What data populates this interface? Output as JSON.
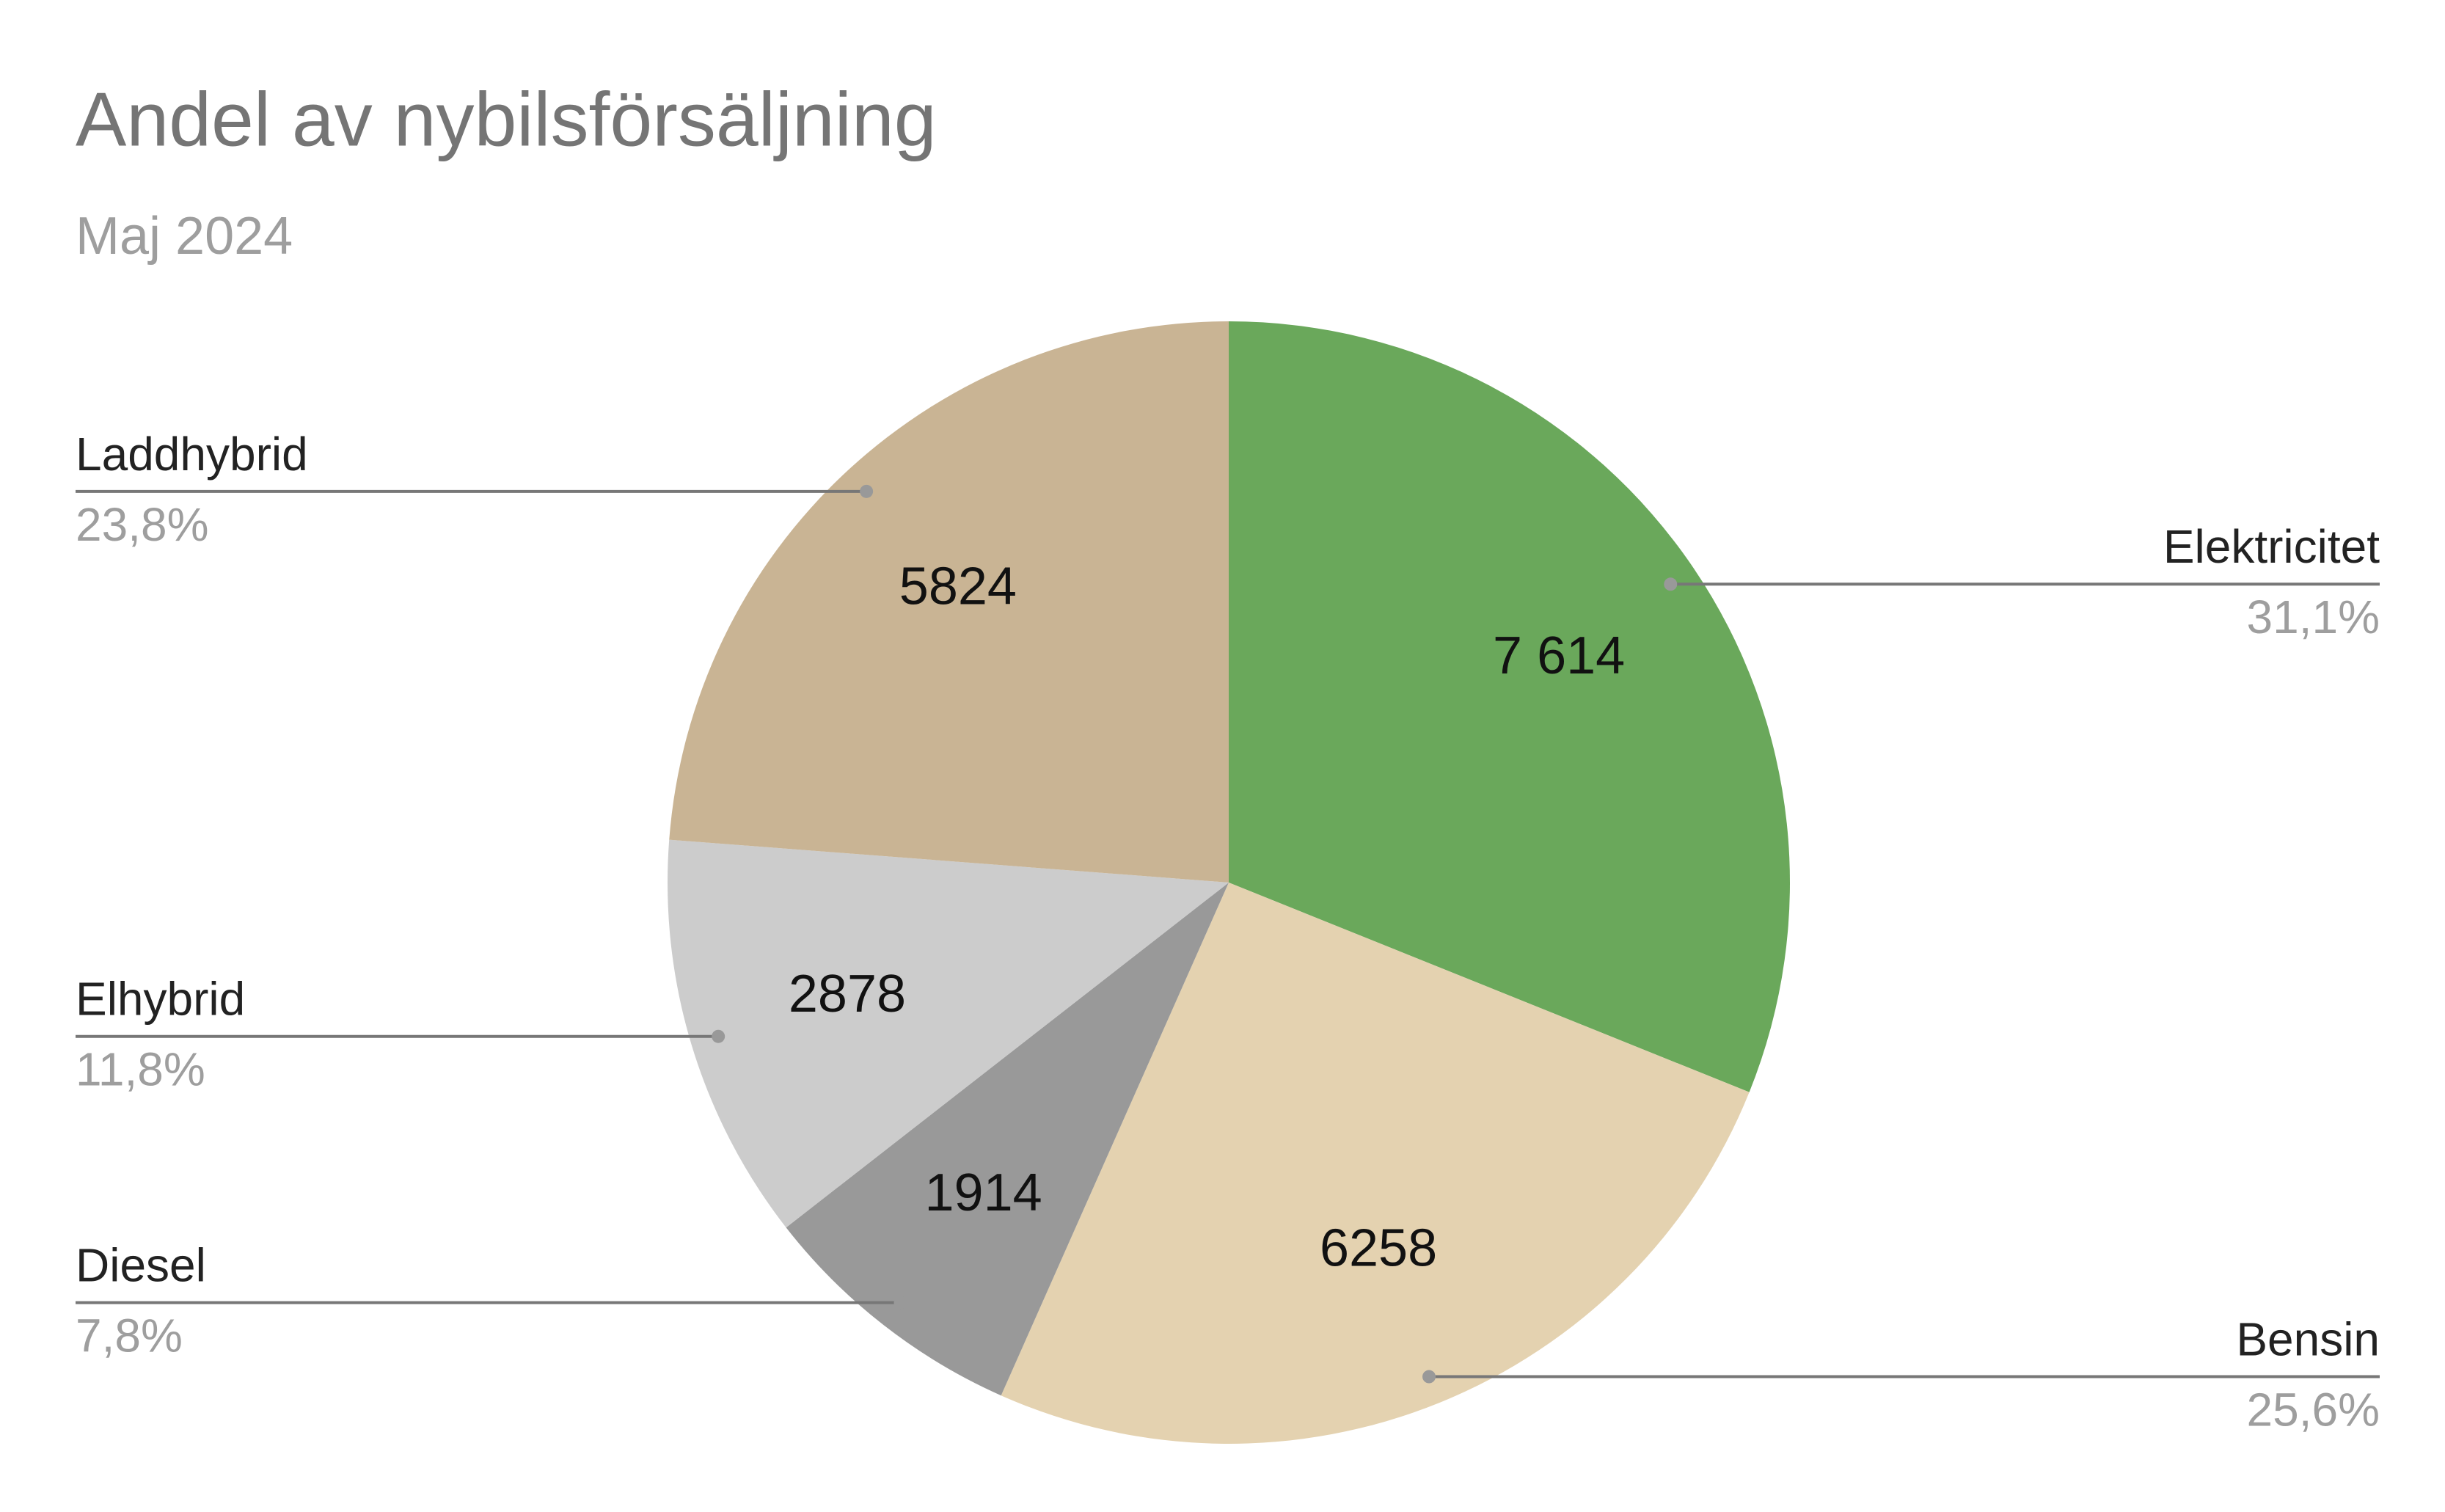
{
  "chart_data": {
    "type": "pie",
    "title": "Andel av nybilsförsäljning",
    "subtitle": "Maj 2024",
    "categories": [
      "Elektricitet",
      "Bensin",
      "Diesel",
      "Elhybrid",
      "Laddhybrid"
    ],
    "values": [
      7614,
      6258,
      1914,
      2878,
      5824
    ],
    "value_labels": [
      "7 614",
      "6258",
      "1914",
      "2878",
      "5824"
    ],
    "percent_labels": [
      "31,1%",
      "25,6%",
      "7,8%",
      "11,8%",
      "23,8%"
    ],
    "colors": [
      "#6aa85b",
      "#e4d2b0",
      "#999999",
      "#cccccc",
      "#c9b494"
    ]
  }
}
